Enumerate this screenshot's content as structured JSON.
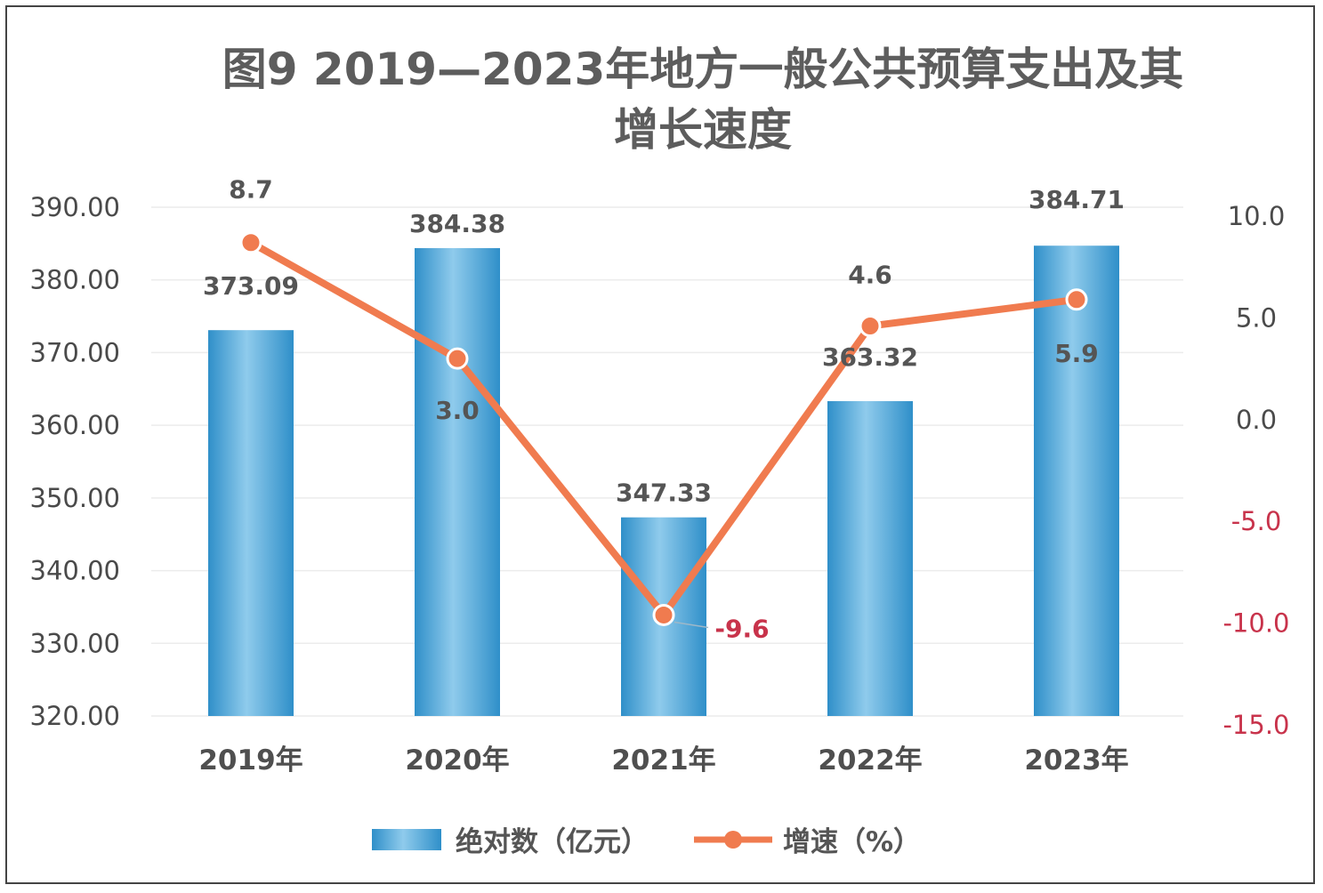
{
  "chart_data": {
    "type": "bar",
    "title_line1": "图9 2019—2023年地方一般公共预算支出及其",
    "title_line2": "增长速度",
    "categories": [
      "2019年",
      "2020年",
      "2021年",
      "2022年",
      "2023年"
    ],
    "series": [
      {
        "name": "绝对数（亿元）",
        "type": "bar",
        "axis": "left",
        "values": [
          373.09,
          384.38,
          347.33,
          363.32,
          384.71
        ],
        "value_labels": [
          "373.09",
          "384.38",
          "347.33",
          "363.32",
          "384.71"
        ]
      },
      {
        "name": "增速（%）",
        "type": "line",
        "axis": "right",
        "values": [
          8.7,
          3.0,
          -9.6,
          4.6,
          5.9
        ],
        "value_labels": [
          "8.7",
          "3.0",
          "-9.6",
          "4.6",
          "5.9"
        ]
      }
    ],
    "y_left": {
      "range": [
        320,
        390
      ],
      "ticks": [
        "320.00",
        "330.00",
        "340.00",
        "350.00",
        "360.00",
        "370.00",
        "380.00",
        "390.00"
      ]
    },
    "y_right": {
      "range": [
        -15,
        10
      ],
      "ticks": [
        "-15.0",
        "-10.0",
        "-5.0",
        "0.0",
        "5.0",
        "10.0"
      ]
    },
    "grid": true,
    "legend_position": "bottom",
    "colors": {
      "bar": "#3a9fd4",
      "bar_light": "#8fcbec",
      "line": "#f07b4f",
      "negative_text": "#c8334b",
      "text": "#555555",
      "grid": "#ececec"
    }
  }
}
